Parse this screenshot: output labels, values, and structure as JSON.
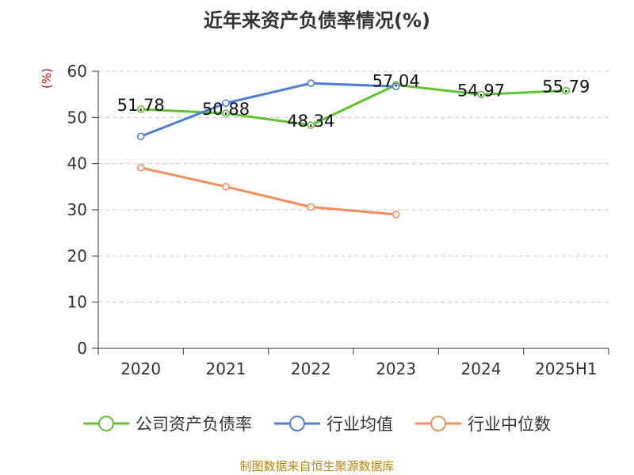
{
  "title": "近年来资产负债率情况(%)",
  "chart_data": {
    "type": "line",
    "unit_label": "(%)",
    "categories": [
      "2020",
      "2021",
      "2022",
      "2023",
      "2024",
      "2025H1"
    ],
    "ylim": [
      0,
      60
    ],
    "yticks": [
      0,
      10,
      20,
      30,
      40,
      50,
      60
    ],
    "grid": true,
    "legend_position": "bottom",
    "series": [
      {
        "name": "公司资产负债率",
        "color": "#5cc42c",
        "values": [
          51.78,
          50.88,
          48.34,
          57.04,
          54.97,
          55.79
        ],
        "labels": [
          "51.78",
          "50.88",
          "48.34",
          "57.04",
          "54.97",
          "55.79"
        ]
      },
      {
        "name": "行业均值",
        "color": "#4a7ed9",
        "values": [
          45.9,
          53.1,
          57.4,
          56.7,
          null,
          null
        ]
      },
      {
        "name": "行业中位数",
        "color": "#f58d5a",
        "values": [
          39.1,
          35.0,
          30.6,
          29.0,
          null,
          null
        ]
      }
    ]
  },
  "footer": "制图数据来自恒生聚源数据库"
}
